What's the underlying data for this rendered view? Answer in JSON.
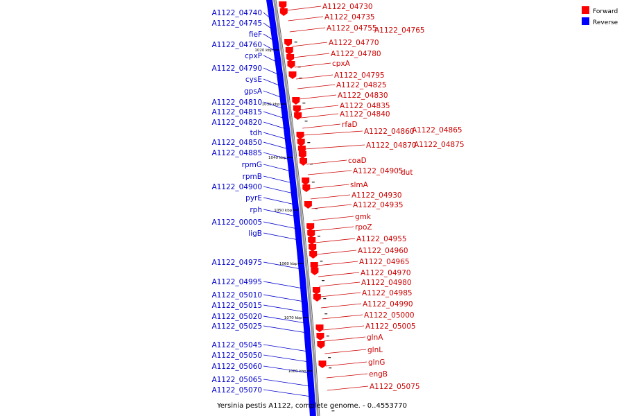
{
  "caption": "Yersinia pestis A1122, complete genome. - 0..4553770",
  "legend": [
    {
      "label": "Forward",
      "color": "#ff0000"
    },
    {
      "label": "Reverse",
      "color": "#0000ff"
    }
  ],
  "colors": {
    "forward": "#ff0000",
    "reverse": "#0000ff",
    "backbone": "#999999"
  },
  "ticks": [
    "1020 kbp",
    "1030 kbp",
    "1040 kbp",
    "1050 kbp",
    "1060 kbp",
    "1070 kbp",
    "1080 kbp"
  ],
  "reverse_labels": [
    "A1122_04740",
    "A1122_04745",
    "fieF",
    "A1122_04760",
    "cpxP",
    "A1122_04790",
    "cysE",
    "gpsA",
    "A1122_04810",
    "A1122_04815",
    "A1122_04820",
    "tdh",
    "A1122_04850",
    "A1122_04885",
    "rpmG",
    "rpmB",
    "A1122_04900",
    "pyrE",
    "rph",
    "A1122_00005",
    "ligB",
    "A1122_04975",
    "A1122_04995",
    "A1122_05010",
    "A1122_05015",
    "A1122_05020",
    "A1122_05025",
    "A1122_05045",
    "A1122_05050",
    "A1122_05060",
    "A1122_05065",
    "A1122_05070"
  ],
  "forward_labels": [
    "A1122_04730",
    "A1122_04735",
    "A1122_04755",
    "A1122_04765",
    "A1122_04770",
    "A1122_04780",
    "cpxA",
    "A1122_04795",
    "A1122_04825",
    "A1122_04830",
    "A1122_04835",
    "A1122_04840",
    "rfaD",
    "A1122_04860",
    "A1122_04865",
    "A1122_04870",
    "A1122_04875",
    "coaD",
    "A1122_04905",
    "dut",
    "slmA",
    "A1122_04930",
    "A1122_04935",
    "gmk",
    "rpoZ",
    "A1122_04955",
    "A1122_04960",
    "A1122_04965",
    "A1122_04970",
    "A1122_04980",
    "A1122_04985",
    "A1122_04990",
    "A1122_05000",
    "A1122_05005",
    "glnA",
    "glnL",
    "glnG",
    "engB",
    "A1122_05075"
  ]
}
